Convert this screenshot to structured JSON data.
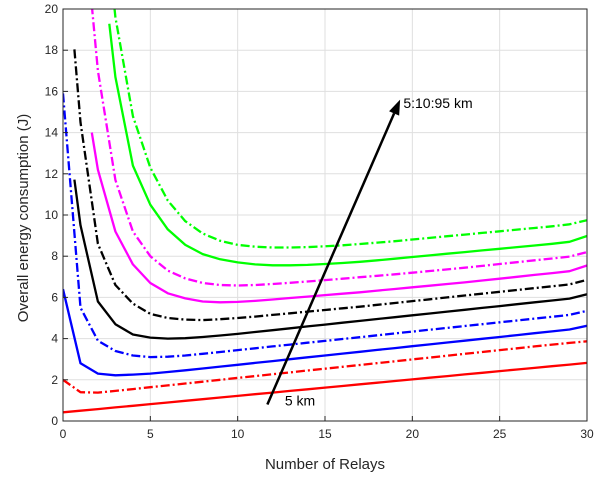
{
  "chart_data": {
    "type": "line",
    "title": "",
    "xlabel": "Number of Relays",
    "ylabel": "Overall energy consumption (J)",
    "xlim": [
      0,
      30
    ],
    "ylim": [
      0,
      20
    ],
    "xticks": [
      0,
      5,
      10,
      15,
      20,
      25,
      30
    ],
    "yticks": [
      0,
      2,
      4,
      6,
      8,
      10,
      12,
      14,
      16,
      18,
      20
    ],
    "grid": true,
    "legend": "none",
    "annotations": [
      {
        "text": "5:10:95 km",
        "x": 19.6,
        "y": 15.2
      },
      {
        "text": "5 km",
        "x": 12.3,
        "y": 0.75
      }
    ],
    "arrow": {
      "from": [
        11.7,
        0.8
      ],
      "to": [
        19.3,
        15.6
      ]
    },
    "x": [
      0,
      1,
      2,
      3,
      4,
      5,
      6,
      7,
      8,
      9,
      10,
      11,
      12,
      13,
      14,
      15,
      16,
      17,
      18,
      19,
      20,
      21,
      22,
      23,
      24,
      25,
      26,
      27,
      28,
      29,
      30
    ],
    "series": [
      {
        "color": "#ff0000",
        "dash": "solid",
        "values": [
          0.42,
          0.5,
          0.58,
          0.66,
          0.74,
          0.82,
          0.9,
          0.98,
          1.06,
          1.14,
          1.22,
          1.3,
          1.38,
          1.46,
          1.54,
          1.62,
          1.7,
          1.78,
          1.86,
          1.94,
          2.02,
          2.1,
          2.18,
          2.26,
          2.34,
          2.42,
          2.5,
          2.58,
          2.66,
          2.74,
          2.82
        ]
      },
      {
        "color": "#ff0000",
        "dash": "dashdot",
        "values": [
          2.0,
          1.4,
          1.38,
          1.46,
          1.55,
          1.64,
          1.73,
          1.82,
          1.91,
          2.0,
          2.09,
          2.18,
          2.27,
          2.36,
          2.45,
          2.54,
          2.63,
          2.72,
          2.81,
          2.9,
          2.99,
          3.08,
          3.17,
          3.26,
          3.35,
          3.44,
          3.53,
          3.62,
          3.71,
          3.79,
          3.87
        ]
      },
      {
        "color": "#0000ff",
        "dash": "solid",
        "values": [
          6.4,
          2.8,
          2.3,
          2.22,
          2.25,
          2.3,
          2.38,
          2.46,
          2.55,
          2.64,
          2.73,
          2.82,
          2.91,
          3.0,
          3.09,
          3.18,
          3.27,
          3.36,
          3.45,
          3.54,
          3.63,
          3.72,
          3.81,
          3.9,
          3.99,
          4.08,
          4.17,
          4.26,
          4.35,
          4.44,
          4.62
        ]
      },
      {
        "color": "#0000ff",
        "dash": "dashdot",
        "values": [
          15.9,
          5.5,
          3.9,
          3.4,
          3.18,
          3.1,
          3.12,
          3.18,
          3.26,
          3.35,
          3.44,
          3.53,
          3.62,
          3.71,
          3.8,
          3.89,
          3.98,
          4.07,
          4.16,
          4.25,
          4.34,
          4.43,
          4.52,
          4.61,
          4.7,
          4.79,
          4.88,
          4.97,
          5.06,
          5.15,
          5.35
        ]
      },
      {
        "color": "#000000",
        "dash": "solid",
        "values": [
          null,
          9.5,
          5.8,
          4.7,
          4.2,
          4.05,
          4.0,
          4.02,
          4.08,
          4.15,
          4.23,
          4.32,
          4.41,
          4.5,
          4.59,
          4.68,
          4.77,
          4.86,
          4.95,
          5.04,
          5.13,
          5.22,
          5.31,
          5.4,
          5.49,
          5.58,
          5.67,
          5.76,
          5.85,
          5.94,
          6.15
        ]
      },
      {
        "color": "#000000",
        "dash": "dashdot",
        "values": [
          null,
          14.5,
          8.6,
          6.6,
          5.7,
          5.2,
          5.0,
          4.92,
          4.9,
          4.94,
          5.0,
          5.07,
          5.15,
          5.23,
          5.31,
          5.39,
          5.47,
          5.55,
          5.64,
          5.73,
          5.82,
          5.91,
          6.0,
          6.09,
          6.18,
          6.27,
          6.36,
          6.45,
          6.54,
          6.63,
          6.85
        ]
      },
      {
        "color": "#ff00ff",
        "dash": "solid",
        "values": [
          null,
          null,
          12.2,
          9.2,
          7.6,
          6.7,
          6.2,
          5.95,
          5.8,
          5.76,
          5.78,
          5.83,
          5.9,
          5.97,
          6.04,
          6.11,
          6.18,
          6.25,
          6.33,
          6.41,
          6.49,
          6.57,
          6.65,
          6.73,
          6.82,
          6.91,
          7.0,
          7.09,
          7.18,
          7.27,
          7.55
        ]
      },
      {
        "color": "#ff00ff",
        "dash": "dashdot",
        "values": [
          null,
          null,
          17.0,
          11.7,
          9.2,
          8.0,
          7.3,
          6.92,
          6.7,
          6.6,
          6.58,
          6.6,
          6.65,
          6.71,
          6.77,
          6.84,
          6.91,
          6.98,
          7.05,
          7.12,
          7.2,
          7.28,
          7.36,
          7.44,
          7.53,
          7.62,
          7.71,
          7.8,
          7.89,
          7.98,
          8.2
        ]
      },
      {
        "color": "#00ff00",
        "dash": "solid",
        "values": [
          null,
          null,
          null,
          16.7,
          12.4,
          10.5,
          9.3,
          8.55,
          8.1,
          7.85,
          7.7,
          7.6,
          7.56,
          7.56,
          7.58,
          7.62,
          7.67,
          7.73,
          7.8,
          7.88,
          7.96,
          8.04,
          8.12,
          8.2,
          8.28,
          8.36,
          8.44,
          8.52,
          8.6,
          8.7,
          8.98
        ]
      },
      {
        "color": "#00ff00",
        "dash": "dashdot",
        "values": [
          null,
          null,
          null,
          19.6,
          14.8,
          12.3,
          10.7,
          9.7,
          9.1,
          8.75,
          8.55,
          8.46,
          8.42,
          8.42,
          8.44,
          8.48,
          8.53,
          8.59,
          8.66,
          8.73,
          8.81,
          8.89,
          8.97,
          9.05,
          9.13,
          9.21,
          9.29,
          9.37,
          9.45,
          9.55,
          9.75
        ]
      }
    ]
  }
}
